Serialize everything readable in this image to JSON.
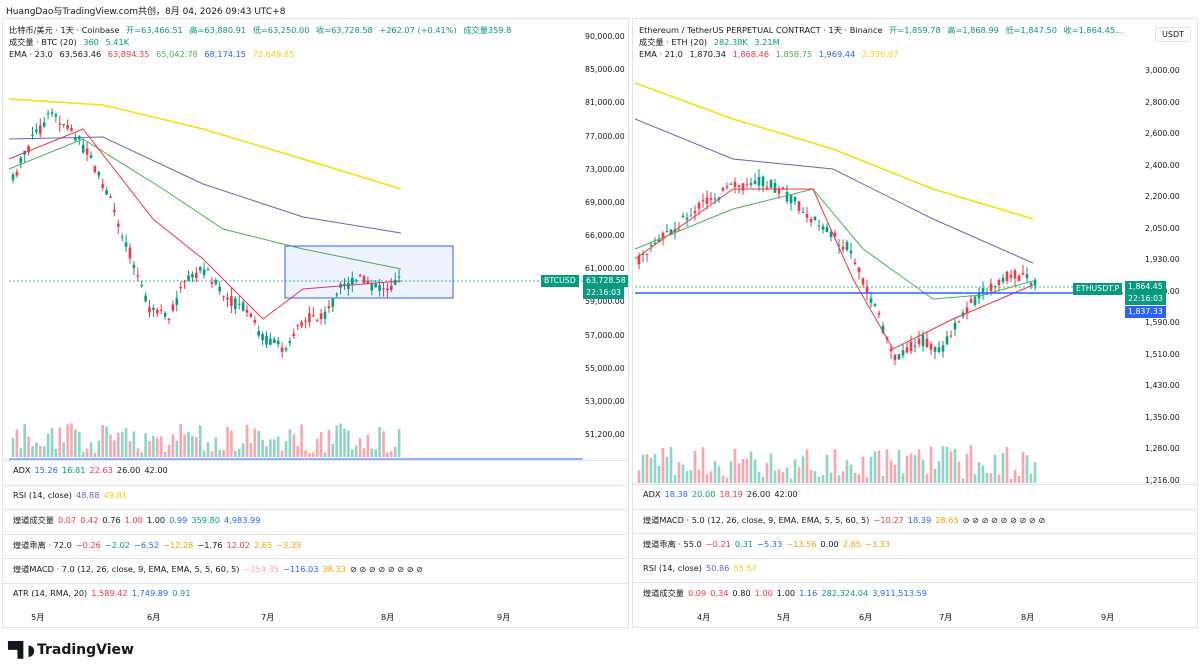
{
  "header_text": "HuangDao与TradingView.com共创，8月 04, 2026 09:43 UTC+8",
  "left": {
    "symbol_line": [
      "比特币/美元 · 1天 · Coinbase",
      "开=63,466.51",
      "高=63,880.91",
      "低=63,250.00",
      "收=63,728.58",
      "+262.07 (+0.41%)",
      "成交量359.8"
    ],
    "vol_line": [
      "成交量 · BTC (20)",
      "360",
      "5.41K"
    ],
    "ema_line": [
      "EMA · 23.0",
      "63,563.46",
      "63,894.35",
      "65,042.78",
      "68,174.15",
      "72,649.85"
    ],
    "price_tag": "BTCUSD",
    "price_value": "63,728.58",
    "price_time": "22:16:03",
    "axis_labels": [
      "90,000.00",
      "85,000.00",
      "81,000.00",
      "77,000.00",
      "73,000.00",
      "69,000.00",
      "66,000.00",
      "61,000.00",
      "59,000.00",
      "57,000.00",
      "55,000.00",
      "53,000.00",
      "51,200.00"
    ],
    "indicators": [
      [
        "ADX",
        "15.26",
        "16.81",
        "22.63",
        "26.00",
        "42.00"
      ],
      [
        "RSI (14, close)",
        "48.88",
        "49.81"
      ],
      [
        "煌道成交量",
        "0.07",
        "0.42",
        "0.76",
        "1.00",
        "1.00",
        "0.99",
        "359.80",
        "4,983.99"
      ],
      [
        "煌道乖离 · 72.0",
        "−0.26",
        "−2.02",
        "−6.52",
        "−12.28",
        "−1.76",
        "12.02",
        "2.65",
        "−3.33"
      ],
      [
        "煌道MACD · 7.0 (12, 26, close, 9, EMA, EMA, 5, 5, 60, 5)",
        "−154.35",
        "−116.03",
        "38.33",
        "⊘ ⊘ ⊘ ⊘ ⊘ ⊘ ⊘ ⊘"
      ],
      [
        "ATR (14, RMA, 20)",
        "1,589.42",
        "1,749.89",
        "0.91"
      ]
    ],
    "x_labels": [
      "5月",
      "6月",
      "7月",
      "8月",
      "9月"
    ]
  },
  "right": {
    "symbol_line": [
      "Ethereum / TetherUS PERPETUAL CONTRACT · 1天 · Binance",
      "开=1,859.78",
      "高=1,868.99",
      "低=1,847.50",
      "收=1,864.45..."
    ],
    "vol_line": [
      "成交量 · ETH (20)",
      "282.38K",
      "3.21M"
    ],
    "ema_line": [
      "EMA · 21.0",
      "1,870.34",
      "1,868.46",
      "1,858.75",
      "1,969.44",
      "2,356.97"
    ],
    "currency": "USDT",
    "price_tag": "ETHUSDT.P",
    "price_value": "1,864.45",
    "price_time": "22:16:03",
    "line_value": "1,837.33",
    "axis_labels": [
      "3,000.00",
      "2,800.00",
      "2,600.00",
      "2,400.00",
      "2,200.00",
      "2,050.00",
      "1,930.00",
      "1,690.00",
      "1,590.00",
      "1,510.00",
      "1,430.00",
      "1,350.00",
      "1,280.00",
      "1,216.00"
    ],
    "indicators": [
      [
        "ADX",
        "18.38",
        "20.00",
        "18.19",
        "26.00",
        "42.00"
      ],
      [
        "煌道MACD · 5.0 (12, 26, close, 9, EMA, EMA, 5, 5, 60, 5)",
        "−10.27",
        "18.39",
        "28.65",
        "⊘ ⊘ ⊘ ⊘ ⊘ ⊘ ⊘ ⊘ ⊘"
      ],
      [
        "煌道乖离 · 55.0",
        "−0.21",
        "0.31",
        "−5.33",
        "−13.56",
        "0.00",
        "2.65",
        "−3.33"
      ],
      [
        "RSI (14, close)",
        "50.86",
        "55.57"
      ],
      [
        "煌道成交量",
        "0.09",
        "0.34",
        "0.80",
        "1.00",
        "1.00",
        "1.16",
        "282,324.04",
        "3,911,513.59"
      ]
    ],
    "x_labels": [
      "4月",
      "5月",
      "6月",
      "7月",
      "8月",
      "9月"
    ]
  },
  "brand": "TradingView",
  "colors": {
    "up": "#089981",
    "down": "#f23645",
    "ema1": "#f23645",
    "ema2": "#4caf50",
    "ema3": "#2962ff",
    "ema4": "#f5e000",
    "box": "#2962ff"
  }
}
